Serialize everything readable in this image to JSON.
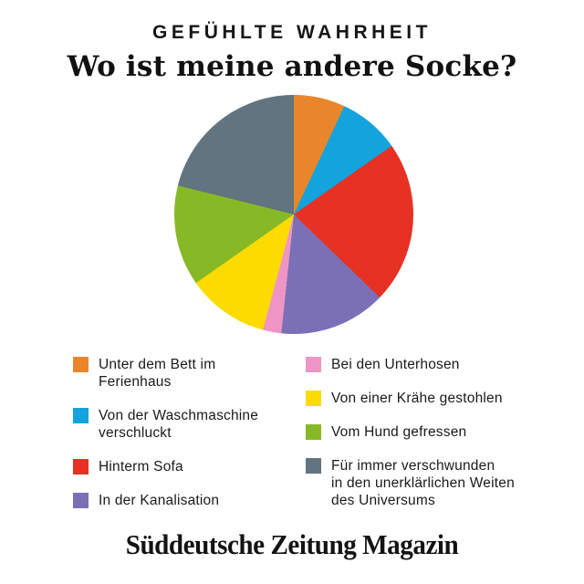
{
  "header": {
    "kicker": "GEFÜHLTE WAHRHEIT",
    "title": "Wo ist meine andere Socke?"
  },
  "footer": {
    "logo_text": "Süddeutsche Zeitung Magazin"
  },
  "colors": {
    "background": "#FFFFFF",
    "text": "#1A1A1A"
  },
  "chart_data": {
    "type": "pie",
    "kicker": "GEFÜHLTE WAHRHEIT",
    "title": "Wo ist meine andere Socke?",
    "start_angle_deg": 0,
    "direction": "clockwise",
    "grid": false,
    "legend_position": "bottom, two columns",
    "value_labels_shown": false,
    "slices": [
      {
        "label": "Unter dem Bett im\nFerienhaus",
        "color": "#E9862B",
        "degrees": 25,
        "percent_est": 7,
        "legend_column": 0
      },
      {
        "label": "Von der Waschmaschine\nverschluckt",
        "color": "#14A3DC",
        "degrees": 30,
        "percent_est": 8.5,
        "legend_column": 0
      },
      {
        "label": "Hinterm Sofa",
        "color": "#E63123",
        "degrees": 79,
        "percent_est": 22,
        "legend_column": 0
      },
      {
        "label": "In der Kanalisation",
        "color": "#7B70B6",
        "degrees": 52,
        "percent_est": 14.5,
        "legend_column": 0
      },
      {
        "label": "Bei den Unterhosen",
        "color": "#EE95C5",
        "degrees": 9,
        "percent_est": 2.5,
        "legend_column": 1
      },
      {
        "label": "Von einer Krähe gestohlen",
        "color": "#FCDB00",
        "degrees": 40,
        "percent_est": 11,
        "legend_column": 1
      },
      {
        "label": "Vom Hund gefressen",
        "color": "#87B927",
        "degrees": 49,
        "percent_est": 13.5,
        "legend_column": 1
      },
      {
        "label": "Für immer verschwunden\nin den unerklärlichen Weiten\ndes Universums",
        "color": "#61747F",
        "degrees": 76,
        "percent_est": 21,
        "legend_column": 1
      }
    ]
  }
}
